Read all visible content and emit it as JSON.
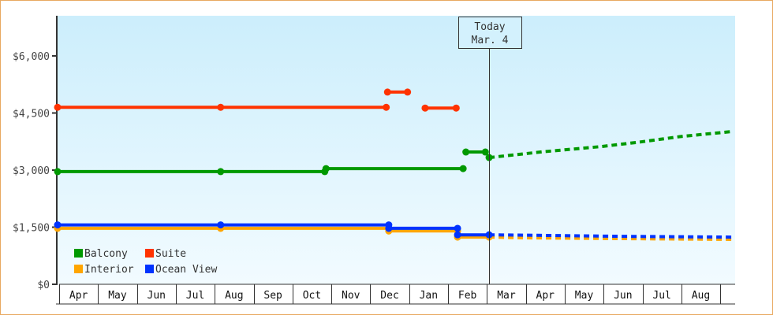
{
  "chart_data": {
    "type": "line",
    "title": "",
    "xlabel": "",
    "ylabel": "",
    "ylim": [
      0,
      7000
    ],
    "y_ticks": [
      "$0",
      "$1,500",
      "$3,000",
      "$4,500",
      "$6,000"
    ],
    "y_tick_values": [
      0,
      1500,
      3000,
      4500,
      6000
    ],
    "x_tick_labels": [
      "Apr",
      "May",
      "Jun",
      "Jul",
      "Aug",
      "Sep",
      "Oct",
      "Nov",
      "Dec",
      "Jan",
      "Feb",
      "Mar",
      "Apr",
      "May",
      "Jun",
      "Jul",
      "Aug"
    ],
    "grid": false,
    "legend_placement": "bottom-left",
    "today_marker": {
      "label": "Today",
      "date_label": "Mar. 4",
      "date": "Mar 4"
    },
    "series": [
      {
        "name": "Balcony",
        "color": "#009900",
        "segments": [
          [
            [
              "Apr 1",
              2960
            ],
            [
              "Aug 7",
              2960
            ],
            [
              "Oct 28",
              2960
            ]
          ],
          [
            [
              "Oct 29",
              3040
            ],
            [
              "Feb 13",
              3040
            ]
          ],
          [
            [
              "Feb 15",
              3475
            ],
            [
              "Mar 1",
              3475
            ]
          ],
          [
            [
              "Mar 4",
              3330
            ]
          ]
        ],
        "forecast": [
          [
            "Mar 4",
            3330
          ],
          [
            "Apr 15",
            3480
          ],
          [
            "Jun 1",
            3620
          ],
          [
            "Jul 1",
            3740
          ],
          [
            "Aug 1",
            3880
          ],
          [
            "Sep 12",
            4015
          ]
        ]
      },
      {
        "name": "Suite",
        "color": "#ff3300",
        "segments": [
          [
            [
              "Apr 1",
              4650
            ],
            [
              "Aug 7",
              4650
            ],
            [
              "Dec 15",
              4650
            ]
          ],
          [
            [
              "Dec 16",
              5050
            ],
            [
              "Jan 1",
              5050
            ]
          ],
          [
            [
              "Jan 15",
              4630
            ],
            [
              "Feb 8",
              4630
            ]
          ]
        ],
        "forecast": []
      },
      {
        "name": "Interior",
        "color": "#ffa500",
        "segments": [
          [
            [
              "Apr 1",
              1470
            ],
            [
              "Aug 7",
              1470
            ],
            [
              "Dec 17",
              1470
            ]
          ],
          [
            [
              "Dec 17",
              1400
            ],
            [
              "Feb 9",
              1400
            ]
          ],
          [
            [
              "Feb 9",
              1240
            ],
            [
              "Mar 4",
              1240
            ]
          ]
        ],
        "forecast": [
          [
            "Mar 4",
            1240
          ],
          [
            "Apr 1",
            1220
          ],
          [
            "Jun 15",
            1200
          ],
          [
            "Sep 12",
            1180
          ]
        ]
      },
      {
        "name": "Ocean View",
        "color": "#0033ff",
        "segments": [
          [
            [
              "Apr 1",
              1560
            ],
            [
              "Aug 7",
              1560
            ],
            [
              "Dec 17",
              1560
            ]
          ],
          [
            [
              "Dec 17",
              1470
            ],
            [
              "Feb 9",
              1470
            ]
          ],
          [
            [
              "Feb 9",
              1300
            ],
            [
              "Mar 4",
              1300
            ]
          ]
        ],
        "forecast": [
          [
            "Mar 4",
            1300
          ],
          [
            "Apr 1",
            1290
          ],
          [
            "Jun 15",
            1260
          ],
          [
            "Sep 12",
            1240
          ]
        ]
      }
    ]
  }
}
